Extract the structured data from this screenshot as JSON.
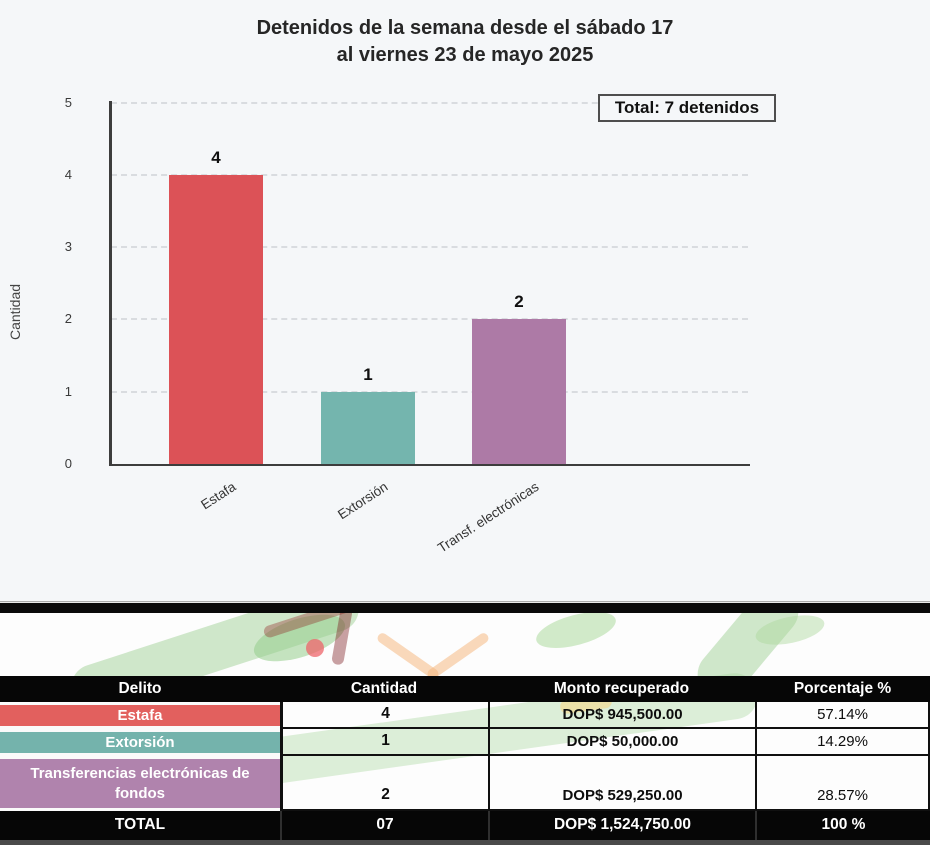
{
  "chart": {
    "title_line1": "Detenidos de la semana desde el sábado 17",
    "title_line2": "al viernes 23 de mayo 2025",
    "total_badge": "Total: 7 detenidos",
    "ylabel": "Cantidad"
  },
  "chart_data": {
    "type": "bar",
    "title": "Detenidos de la semana desde el sábado 17 al viernes 23 de mayo 2025",
    "categories": [
      "Estafa",
      "Extorsión",
      "Transf. electrónicas"
    ],
    "values": [
      4,
      1,
      2
    ],
    "colors": [
      "#dc5257",
      "#74b5ae",
      "#ad7aa6"
    ],
    "xlabel": "",
    "ylabel": "Cantidad",
    "ylim": [
      0,
      5
    ],
    "yticks": [
      0,
      1,
      2,
      3,
      4,
      5
    ],
    "grid": "horizontal dashed",
    "legend": "none",
    "annotation": "Total: 7 detenidos"
  },
  "table": {
    "headers": [
      "Delito",
      "Cantidad",
      "Monto recuperado",
      "Porcentaje %"
    ],
    "rows": [
      {
        "delito": "Estafa",
        "cantidad": "4",
        "monto": "DOP$ 945,500.00",
        "porcentaje": "57.14%",
        "color": "#e2605e"
      },
      {
        "delito": "Extorsión",
        "cantidad": "1",
        "monto": "DOP$ 50,000.00",
        "porcentaje": "14.29%",
        "color": "#74b3ac"
      },
      {
        "delito": "Transferencias electrónicas de fondos",
        "cantidad": "2",
        "monto": "DOP$ 529,250.00",
        "porcentaje": "28.57%",
        "color": "#b083ad"
      }
    ],
    "total_row": {
      "delito": "TOTAL",
      "cantidad": "07",
      "monto": "DOP$ 1,524,750.00",
      "porcentaje": "100 %"
    }
  }
}
